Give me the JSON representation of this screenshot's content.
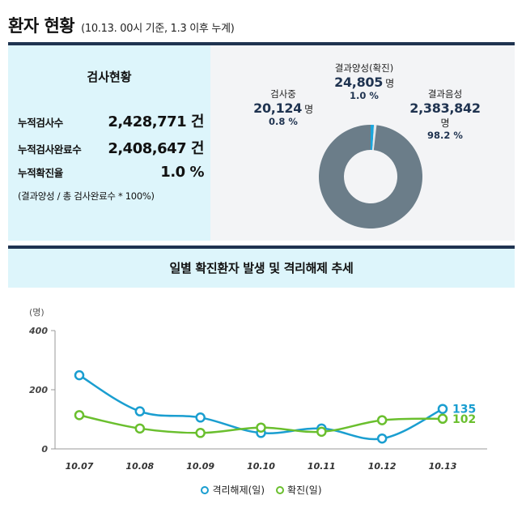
{
  "header": {
    "title": "환자 현황",
    "subtitle": "(10.13. 00시 기준, 1.3 이후 누계)"
  },
  "stats": {
    "title": "검사현황",
    "rows": [
      {
        "label": "누적검사수",
        "value": "2,428,771 건"
      },
      {
        "label": "누적검사완료수",
        "value": "2,408,647 건"
      },
      {
        "label": "누적확진율",
        "value": "1.0 %"
      }
    ],
    "note": "(결과양성 / 총 검사완료수 * 100%)"
  },
  "donut": {
    "positive": {
      "name": "결과양성(확진)",
      "value": "24,805",
      "unit": "명",
      "pct": "1.0 %"
    },
    "testing": {
      "name": "검사중",
      "value": "20,124",
      "unit": "명",
      "pct": "0.8 %"
    },
    "negative": {
      "name": "결과음성",
      "value": "2,383,842",
      "unit": "명",
      "pct": "98.2 %"
    },
    "colors": {
      "positive": "#1aa6dc",
      "testing": "#e3e6e9",
      "negative": "#6b7d89"
    }
  },
  "chart_title": "일별 확진환자 발생 및 격리해제 추세",
  "chart_data": [
    {
      "type": "pie",
      "categories": [
        "결과양성(확진)",
        "검사중",
        "결과음성"
      ],
      "values": [
        24805,
        20124,
        2383842
      ],
      "percentages": [
        1.0,
        0.8,
        98.2
      ]
    },
    {
      "type": "line",
      "title": "일별 확진환자 발생 및 격리해제 추세",
      "ylabel": "(명)",
      "categories": [
        "10.07",
        "10.08",
        "10.09",
        "10.10",
        "10.11",
        "10.12",
        "10.13"
      ],
      "yticks": [
        "0",
        "200",
        "400"
      ],
      "ylim": [
        0,
        400
      ],
      "grid": false,
      "legend": "bottom",
      "series": [
        {
          "name": "격리해제(일)",
          "color": "#1a9ed0",
          "values": [
            249,
            127,
            106,
            54,
            69,
            35,
            135
          ],
          "end_label": "135"
        },
        {
          "name": "확진(일)",
          "color": "#6abf2e",
          "values": [
            114,
            69,
            54,
            72,
            58,
            97,
            102
          ],
          "end_label": "102"
        }
      ]
    }
  ]
}
